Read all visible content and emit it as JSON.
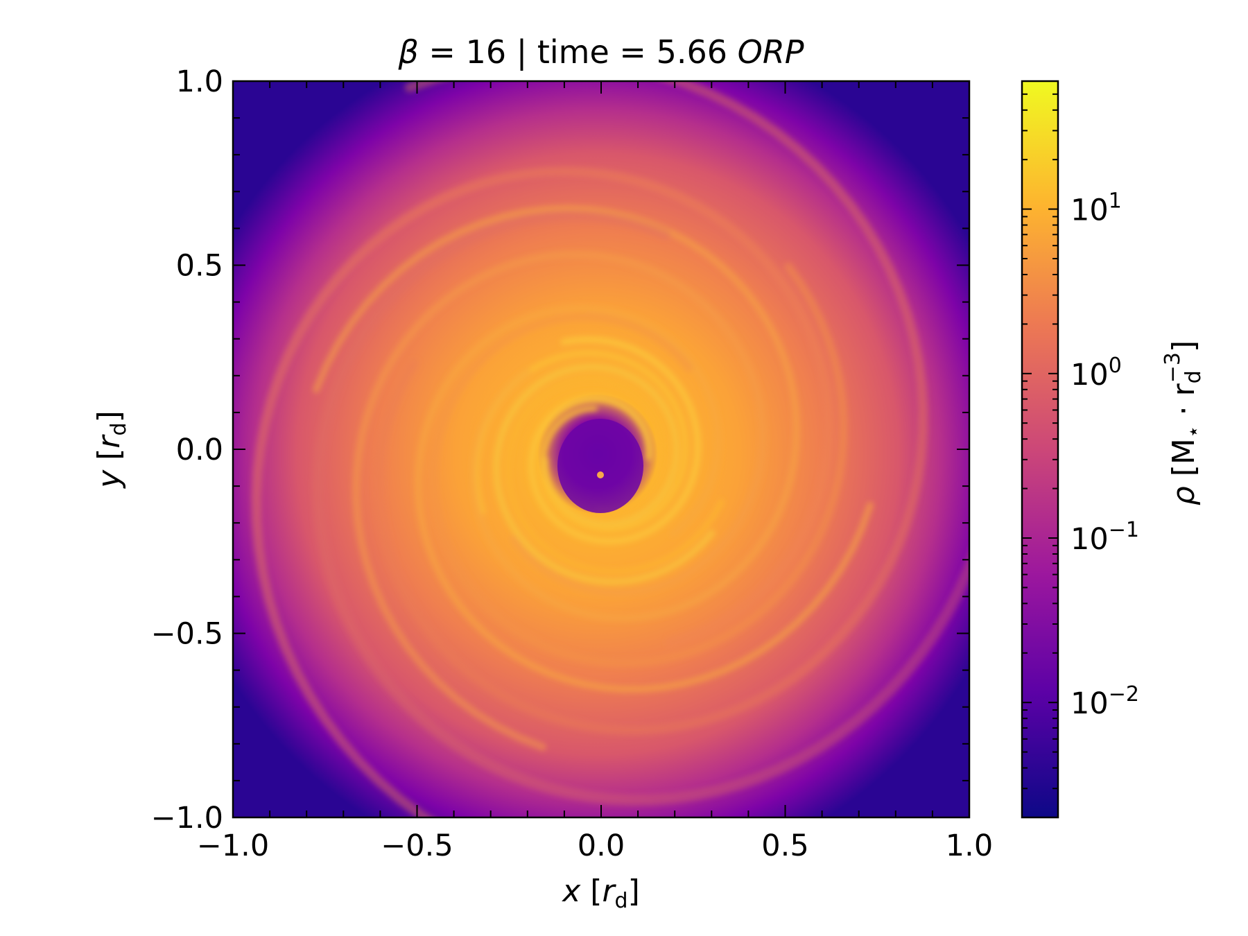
{
  "chart_data": {
    "type": "heatmap",
    "title": {
      "prefix_symbol": "β",
      "middle": " = 16 | time = 5.66 ",
      "suffix_italic": "ORP"
    },
    "xlabel": {
      "var": "x",
      "open": " [",
      "unit": "r",
      "unit_sub": "d",
      "close": "]"
    },
    "ylabel": {
      "var": "y",
      "open": " [",
      "unit": "r",
      "unit_sub": "d",
      "close": "]"
    },
    "xlim": [
      -1.0,
      1.0
    ],
    "ylim": [
      -1.0,
      1.0
    ],
    "x_ticks": [
      -1.0,
      -0.5,
      0.0,
      0.5,
      1.0
    ],
    "y_ticks": [
      -1.0,
      -0.5,
      0.0,
      0.5,
      1.0
    ],
    "x_tick_labels": [
      "−1.0",
      "−0.5",
      "0.0",
      "0.5",
      "1.0"
    ],
    "y_tick_labels": [
      "−1.0",
      "−0.5",
      "0.0",
      "0.5",
      "1.0"
    ],
    "colorbar": {
      "scale": "log",
      "range": [
        0.002,
        60
      ],
      "colormap": "plasma",
      "ticks": [
        {
          "value": 0.01,
          "base": "10",
          "exp": "−2"
        },
        {
          "value": 0.1,
          "base": "10",
          "exp": "−1"
        },
        {
          "value": 1,
          "base": "10",
          "exp": "0"
        },
        {
          "value": 10,
          "base": "10",
          "exp": "1"
        }
      ],
      "label": {
        "var": "ρ",
        "open": " [M",
        "star": "⋆",
        "dot": " · r",
        "sub": "d",
        "sup": "−3",
        "close": "]"
      }
    },
    "structure": {
      "description_hidden": false,
      "central_cavity_density": 0.03,
      "peak_density": 20,
      "outer_density": 0.003
    },
    "colors": {
      "plasma_stops": [
        "#0d0887",
        "#5c01a6",
        "#9c179e",
        "#cc4778",
        "#ed7953",
        "#fdb42f",
        "#f0f921"
      ]
    }
  }
}
